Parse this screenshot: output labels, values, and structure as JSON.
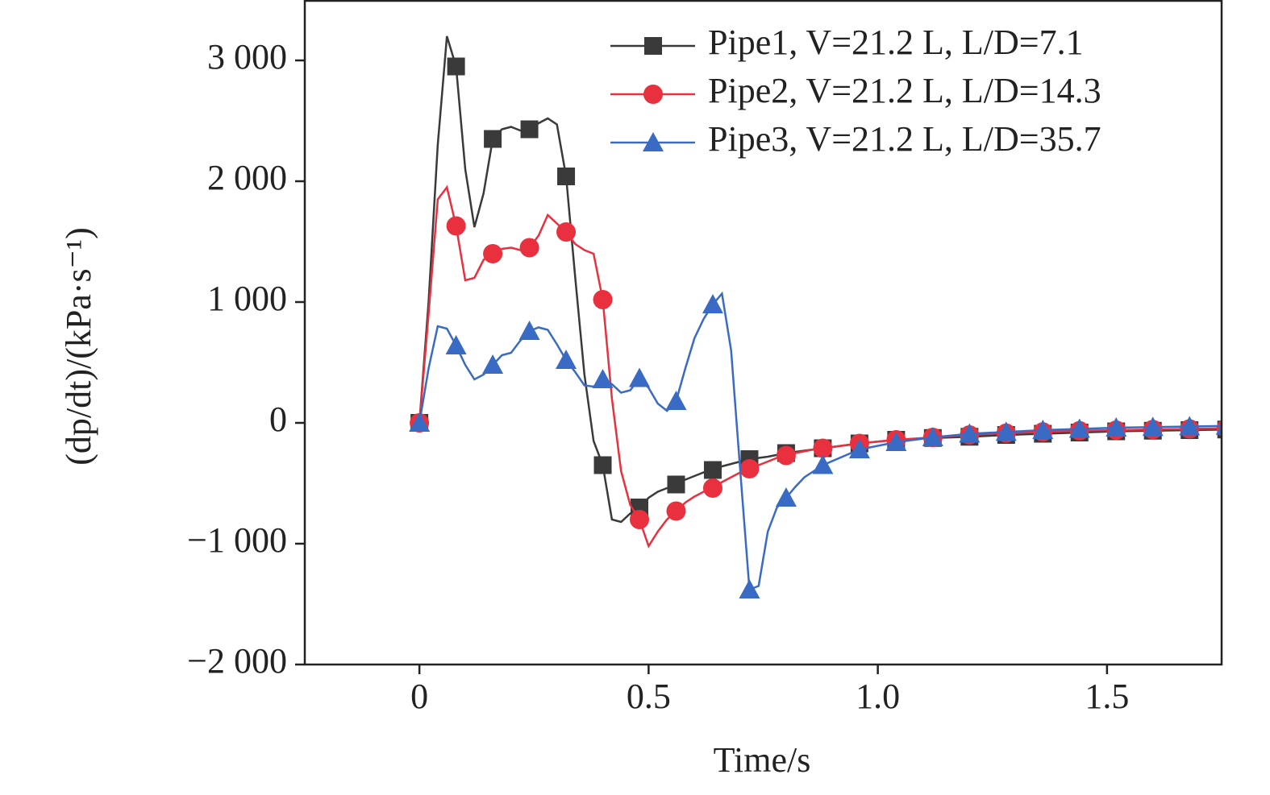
{
  "chart_data": {
    "type": "line",
    "x_label": "Time/s",
    "y_label": "(dp/dt)/(kPa·s⁻¹)",
    "xlim": [
      -0.25,
      1.75
    ],
    "xticks": [
      0,
      0.5,
      {
        "value": 1,
        "label": "1.0"
      },
      1.5
    ],
    "ylim": [
      -2000,
      3500
    ],
    "yticks": [
      {
        "value": -2000,
        "label": "−2 000"
      },
      {
        "value": -1000,
        "label": "−1 000"
      },
      0,
      {
        "value": 1000,
        "label": "1 000"
      },
      {
        "value": 2000,
        "label": "2 000"
      },
      {
        "value": 3000,
        "label": "3 000"
      }
    ],
    "legend": "upper right",
    "x": [
      0,
      0.02,
      0.04,
      0.06,
      0.08,
      0.1,
      0.12,
      0.14,
      0.16,
      0.18,
      0.2,
      0.22,
      0.24,
      0.26,
      0.28,
      0.3,
      0.32,
      0.34,
      0.36,
      0.38,
      0.4,
      0.42,
      0.44,
      0.46,
      0.48,
      0.5,
      0.52,
      0.54,
      0.56,
      0.58,
      0.6,
      0.62,
      0.64,
      0.66,
      0.68,
      0.7,
      0.72,
      0.74,
      0.76,
      0.78,
      0.8,
      0.82,
      0.84,
      0.86,
      0.88,
      0.96,
      1.04,
      1.12,
      1.2,
      1.28,
      1.36,
      1.44,
      1.52,
      1.6,
      1.68,
      1.76
    ],
    "series": [
      {
        "name": "Pipe1, V=21.2 L, L/D=7.1",
        "color": "#3a3a3a",
        "marker": "square",
        "values": [
          0,
          1000,
          2300,
          3200,
          2950,
          2100,
          1620,
          1900,
          2350,
          2430,
          2450,
          2420,
          2430,
          2480,
          2520,
          2470,
          2040,
          1200,
          400,
          -150,
          -350,
          -800,
          -820,
          -750,
          -700,
          -620,
          -570,
          -540,
          -510,
          -470,
          -440,
          -410,
          -390,
          -360,
          -340,
          -320,
          -300,
          -290,
          -280,
          -265,
          -250,
          -240,
          -230,
          -220,
          -210,
          -170,
          -140,
          -125,
          -115,
          -100,
          -90,
          -80,
          -70,
          -65,
          -60,
          -55
        ]
      },
      {
        "name": "Pipe2, V=21.2 L, L/D=14.3",
        "color": "#e8303f",
        "marker": "circle",
        "values": [
          0,
          900,
          1850,
          1950,
          1630,
          1180,
          1200,
          1350,
          1400,
          1440,
          1450,
          1430,
          1450,
          1550,
          1720,
          1650,
          1580,
          1480,
          1430,
          1400,
          1020,
          200,
          -400,
          -680,
          -800,
          -1020,
          -900,
          -800,
          -730,
          -660,
          -610,
          -570,
          -540,
          -490,
          -450,
          -410,
          -380,
          -350,
          -320,
          -290,
          -270,
          -250,
          -235,
          -220,
          -210,
          -170,
          -140,
          -120,
          -100,
          -85,
          -75,
          -65,
          -60,
          -55,
          -50,
          -45
        ]
      },
      {
        "name": "Pipe3, V=21.2 L, L/D=35.7",
        "color": "#3a6bc4",
        "marker": "triangle",
        "values": [
          0,
          450,
          800,
          780,
          640,
          480,
          360,
          400,
          480,
          560,
          580,
          680,
          760,
          790,
          770,
          650,
          520,
          420,
          310,
          300,
          360,
          320,
          250,
          270,
          370,
          290,
          160,
          100,
          180,
          450,
          700,
          860,
          980,
          1070,
          600,
          -400,
          -1380,
          -1350,
          -900,
          -700,
          -620,
          -530,
          -450,
          -400,
          -350,
          -220,
          -160,
          -120,
          -90,
          -75,
          -60,
          -50,
          -40,
          -35,
          -30,
          -25
        ]
      }
    ]
  }
}
